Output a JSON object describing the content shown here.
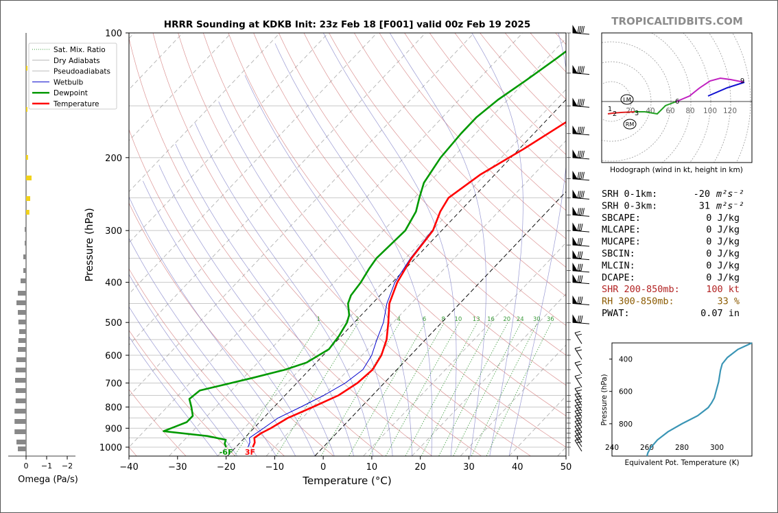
{
  "title": "HRRR Sounding at KDKB Init: 23z Feb 18 [F001] valid 00z Feb 19 2025",
  "watermark": "TROPICALTIDBITS.COM",
  "chart_data": [
    {
      "type": "line",
      "name": "skew-t",
      "xlabel": "Temperature (°C)",
      "ylabel": "Pressure (hPa)",
      "xlim": [
        -40,
        50
      ],
      "ylim": [
        1050,
        100
      ],
      "y_scale": "log",
      "x_ticks": [
        "−40",
        "−30",
        "−20",
        "−10",
        "0",
        "10",
        "20",
        "30",
        "40",
        "50"
      ],
      "y_ticks": [
        "100",
        "200",
        "300",
        "400",
        "500",
        "600",
        "700",
        "800",
        "900",
        "1000"
      ],
      "legend": [
        "Sat. Mix. Ratio",
        "Dry Adiabats",
        "Pseudoadiabats",
        "Wetbulb",
        "Dewpoint",
        "Temperature"
      ],
      "mixing_ratio_labels": [
        "1",
        "2",
        "4",
        "6",
        "8",
        "10",
        "13",
        "16",
        "20",
        "24",
        "30",
        "36"
      ],
      "surface_labels": {
        "dewpoint": "-6F",
        "temperature": "3F"
      },
      "colors": {
        "temperature": "#ff0000",
        "dewpoint": "#009900",
        "wetbulb": "#0000cc",
        "dry": "#d07070",
        "moist": "#8080c8",
        "mix": "#3a9a3a"
      },
      "series": [
        {
          "name": "Temperature",
          "points": [
            [
              -14.5,
              1000
            ],
            [
              -15,
              975
            ],
            [
              -16,
              950
            ],
            [
              -15.5,
              925
            ],
            [
              -14.5,
              900
            ],
            [
              -13,
              850
            ],
            [
              -10,
              800
            ],
            [
              -7,
              750
            ],
            [
              -5.5,
              700
            ],
            [
              -5,
              650
            ],
            [
              -6,
              600
            ],
            [
              -8,
              550
            ],
            [
              -11,
              500
            ],
            [
              -14.5,
              450
            ],
            [
              -17,
              400
            ],
            [
              -18.8,
              350
            ],
            [
              -19.8,
              300
            ],
            [
              -22,
              270
            ],
            [
              -23,
              250
            ],
            [
              -21,
              220
            ],
            [
              -17,
              190
            ],
            [
              -13,
              160
            ],
            [
              -10,
              140
            ],
            [
              -8,
              120
            ],
            [
              -5,
              110
            ],
            [
              -3,
              100
            ]
          ]
        },
        {
          "name": "Dewpoint",
          "points": [
            [
              -20,
              1000
            ],
            [
              -21,
              980
            ],
            [
              -21.5,
              960
            ],
            [
              -26,
              940
            ],
            [
              -36,
              915
            ],
            [
              -33,
              870
            ],
            [
              -33,
              840
            ],
            [
              -35,
              800
            ],
            [
              -37,
              765
            ],
            [
              -36.5,
              730
            ],
            [
              -28,
              680
            ],
            [
              -23,
              650
            ],
            [
              -20,
              625
            ],
            [
              -18,
              580
            ],
            [
              -18.5,
              540
            ],
            [
              -19.5,
              500
            ],
            [
              -20.5,
              480
            ],
            [
              -23,
              450
            ],
            [
              -24,
              430
            ],
            [
              -24.5,
              400
            ],
            [
              -25.5,
              370
            ],
            [
              -26,
              350
            ],
            [
              -25.5,
              300
            ],
            [
              -27,
              270
            ],
            [
              -29,
              250
            ],
            [
              -31,
              230
            ],
            [
              -32.5,
              200
            ],
            [
              -33,
              175
            ],
            [
              -33,
              160
            ],
            [
              -32,
              145
            ],
            [
              -30,
              130
            ],
            [
              -28,
              115
            ],
            [
              -26,
              100
            ]
          ]
        },
        {
          "name": "Wetbulb",
          "points": [
            [
              -15.5,
              1000
            ],
            [
              -16,
              975
            ],
            [
              -17,
              950
            ],
            [
              -16,
              900
            ],
            [
              -15,
              850
            ],
            [
              -12.5,
              800
            ],
            [
              -10,
              750
            ],
            [
              -8,
              700
            ],
            [
              -7,
              650
            ],
            [
              -8,
              600
            ],
            [
              -10,
              550
            ],
            [
              -12,
              500
            ],
            [
              -15,
              450
            ],
            [
              -17.5,
              400
            ],
            [
              -19,
              350
            ],
            [
              -20,
              300
            ]
          ]
        }
      ],
      "omega_panel": {
        "xlabel": "Omega (Pa/s)",
        "x_ticks": [
          "0",
          "−1",
          "−2"
        ]
      }
    },
    {
      "type": "line",
      "name": "hodograph",
      "xlabel": "Hodograph (wind in kt, height in km)",
      "ring_labels": [
        "20",
        "40",
        "60",
        "80",
        "100",
        "120"
      ],
      "height_labels": [
        "1",
        "2",
        "3",
        "6",
        "9"
      ],
      "markers": [
        "LM",
        "RM"
      ]
    },
    {
      "type": "line",
      "name": "theta-e",
      "xlabel": "Equivalent Pot. Temperature (K)",
      "ylabel": "Pressure (hPa)",
      "x_ticks": [
        "240",
        "260",
        "280",
        "300"
      ],
      "y_ticks": [
        "400",
        "600",
        "800"
      ],
      "xlim": [
        240,
        320
      ],
      "ylim": [
        1000,
        300
      ],
      "color": "#3a95b5",
      "points": [
        [
          260,
          1000
        ],
        [
          260.5,
          980
        ],
        [
          262,
          950
        ],
        [
          266,
          900
        ],
        [
          272,
          850
        ],
        [
          280,
          800
        ],
        [
          289,
          750
        ],
        [
          295,
          700
        ],
        [
          297,
          670
        ],
        [
          298.5,
          640
        ],
        [
          299.5,
          600
        ],
        [
          301,
          540
        ],
        [
          302,
          470
        ],
        [
          303,
          430
        ],
        [
          306,
          390
        ],
        [
          312,
          340
        ],
        [
          320,
          300
        ]
      ]
    }
  ],
  "params": [
    {
      "label": "SRH 0-1km:",
      "value": "-20",
      "unit": "m²s⁻²",
      "color": "#000000"
    },
    {
      "label": "SRH 0-3km:",
      "value": "31",
      "unit": "m²s⁻²",
      "color": "#000000"
    },
    {
      "label": "SBCAPE:",
      "value": "0 J/kg",
      "unit": "",
      "color": "#000000"
    },
    {
      "label": "MLCAPE:",
      "value": "0 J/kg",
      "unit": "",
      "color": "#000000"
    },
    {
      "label": "MUCAPE:",
      "value": "0 J/kg",
      "unit": "",
      "color": "#000000"
    },
    {
      "label": "SBCIN:",
      "value": "0 J/kg",
      "unit": "",
      "color": "#000000"
    },
    {
      "label": "MLCIN:",
      "value": "0 J/kg",
      "unit": "",
      "color": "#000000"
    },
    {
      "label": "DCAPE:",
      "value": "0 J/kg",
      "unit": "",
      "color": "#000000"
    },
    {
      "label": "SHR 200-850mb:",
      "value": "100 kt",
      "unit": "",
      "color": "#b22222"
    },
    {
      "label": "RH 300-850mb:",
      "value": "33 %",
      "unit": "",
      "color": "#8b5a00"
    },
    {
      "label": "PWAT:",
      "value": "0.07 in",
      "unit": "",
      "color": "#000000"
    }
  ]
}
